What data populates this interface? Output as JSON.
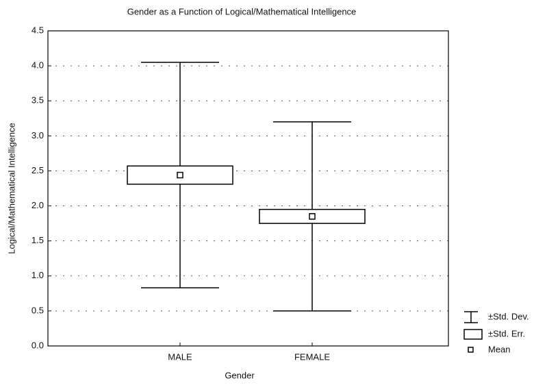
{
  "chart_data": {
    "type": "errorbox",
    "title": "Gender as a Function of Logical/Mathematical Intelligence",
    "x_label": "Gender",
    "y_label": "Logical/Mathematical Intelligence",
    "categories": [
      "MALE",
      "FEMALE"
    ],
    "mean": [
      2.44,
      1.85
    ],
    "se": [
      0.13,
      0.1
    ],
    "sd": [
      1.61,
      1.35
    ],
    "ylim": [
      0,
      4.5
    ],
    "yticks": [
      {
        "value": 0,
        "label": "0.0"
      },
      0.5,
      {
        "value": 1,
        "label": "1.0"
      },
      1.5,
      {
        "value": 2,
        "label": "2.0"
      },
      2.5,
      {
        "value": 3,
        "label": "3.0"
      },
      3.5,
      {
        "value": 4,
        "label": "4.0"
      },
      4.5
    ],
    "grid": true,
    "legend": [
      "±Std. Dev.",
      "±Std. Err.",
      "Mean"
    ],
    "legend_position": "lower right",
    "color": "#000000"
  }
}
